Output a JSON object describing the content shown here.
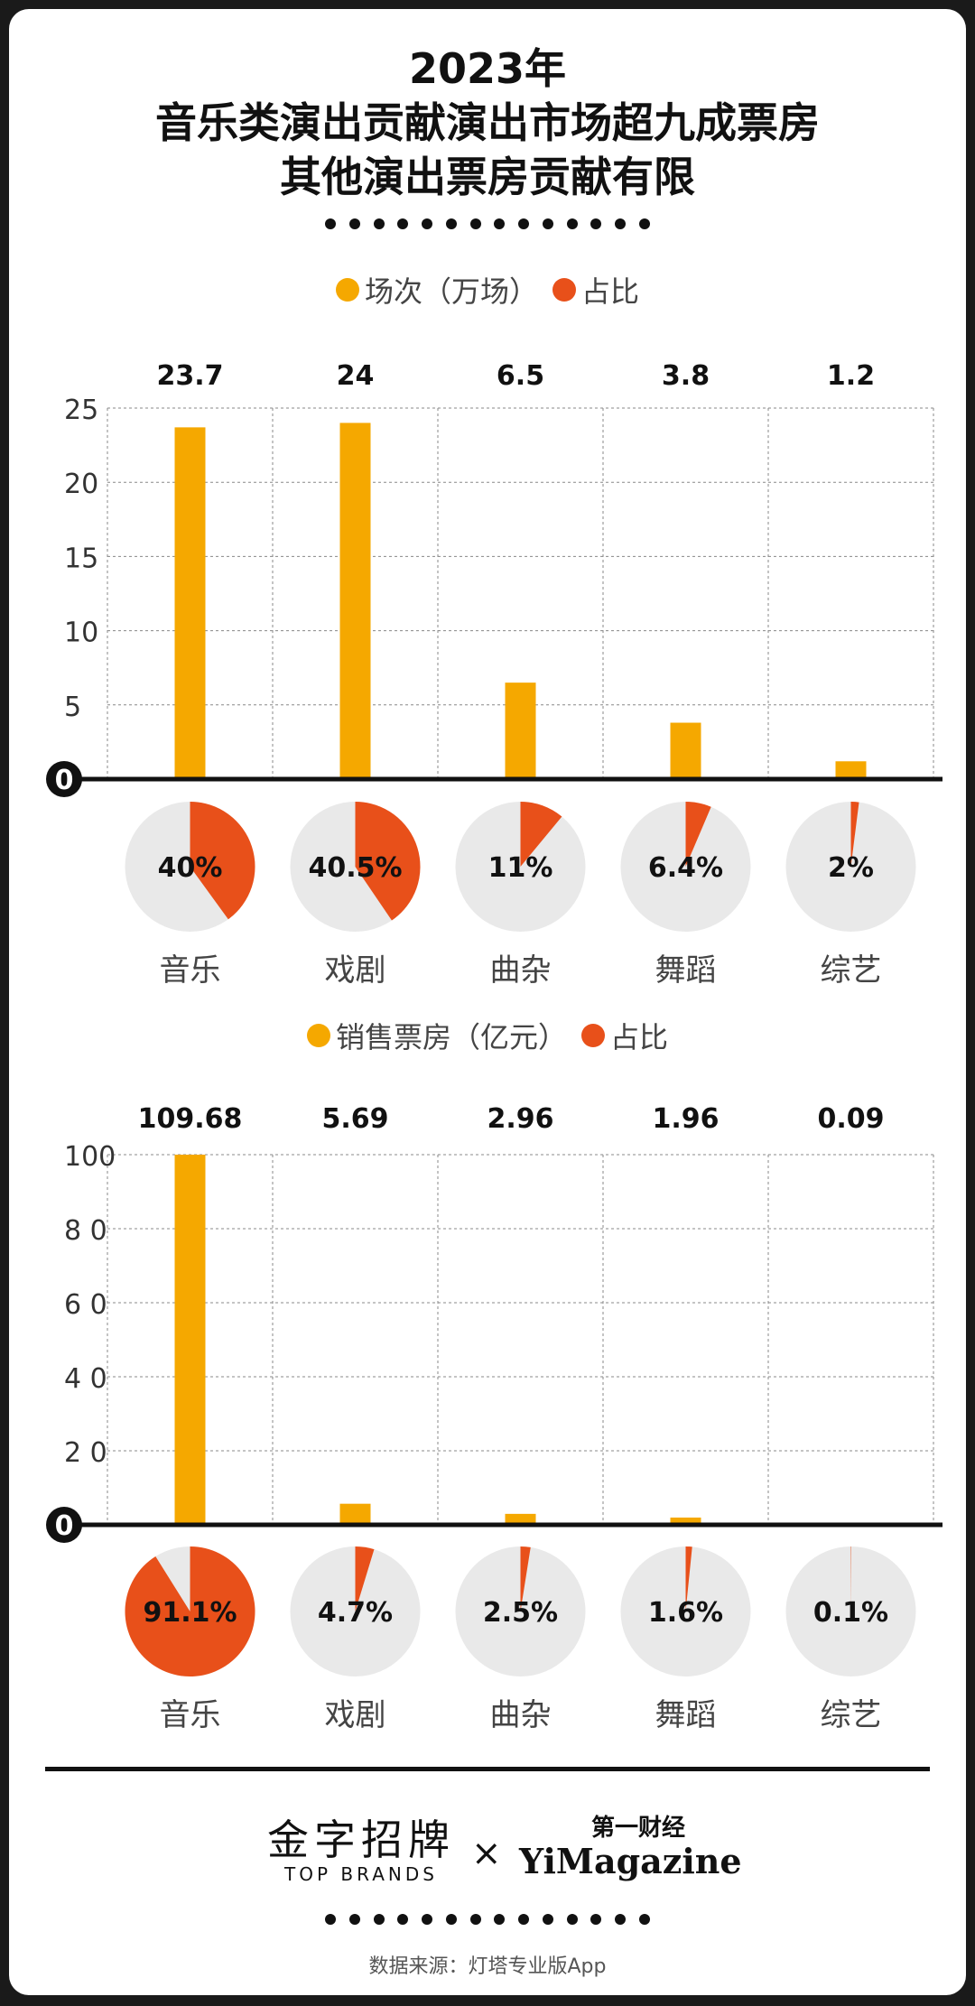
{
  "header": {
    "title_lines": [
      "2023年",
      "音乐类演出贡献演出市场超九成票房",
      "其他演出票房贡献有限"
    ]
  },
  "colors": {
    "bar": "#F5A800",
    "share": "#E8501A",
    "pie_bg": "#E9E9E9",
    "text": "#111111"
  },
  "chart_data": [
    {
      "type": "bar",
      "categories": [
        "音乐",
        "戏剧",
        "曲杂",
        "舞蹈",
        "综艺"
      ],
      "values": [
        23.7,
        24,
        6.5,
        3.8,
        1.2
      ],
      "value_labels": [
        "23.7",
        "24",
        "6.5",
        "3.8",
        "1.2"
      ],
      "yticks": [
        "0",
        "5",
        "10",
        "15",
        "20",
        "25"
      ],
      "ylim": [
        0,
        25
      ],
      "grid": true,
      "legend": [
        {
          "name": "场次（万场）",
          "color": "#F5A800"
        },
        {
          "name": "占比",
          "color": "#E8501A"
        }
      ],
      "pie_shares": [
        40,
        40.5,
        11,
        6.4,
        2
      ],
      "pie_labels": [
        "40%",
        "40.5%",
        "11%",
        "6.4%",
        "2%"
      ]
    },
    {
      "type": "bar",
      "categories": [
        "音乐",
        "戏剧",
        "曲杂",
        "舞蹈",
        "综艺"
      ],
      "values": [
        109.68,
        5.69,
        2.96,
        1.96,
        0.09
      ],
      "value_labels": [
        "109.68",
        "5.69",
        "2.96",
        "1.96",
        "0.09"
      ],
      "yticks": [
        "0",
        "2 0",
        "4 0",
        "6 0",
        "8 0",
        "100"
      ],
      "ylim": [
        0,
        100
      ],
      "grid": true,
      "legend": [
        {
          "name": "销售票房（亿元）",
          "color": "#F5A800"
        },
        {
          "name": "占比",
          "color": "#E8501A"
        }
      ],
      "pie_shares": [
        91.1,
        4.7,
        2.5,
        1.6,
        0.1
      ],
      "pie_labels": [
        "91.1%",
        "4.7%",
        "2.5%",
        "1.6%",
        "0.1%"
      ]
    }
  ],
  "footer": {
    "brand_left_cn": "金字招牌",
    "brand_left_en": "TOP BRANDS",
    "times": "×",
    "brand_right_cn": "第一财经",
    "brand_right_en": "YiMagazine",
    "source": "数据来源：灯塔专业版App"
  }
}
